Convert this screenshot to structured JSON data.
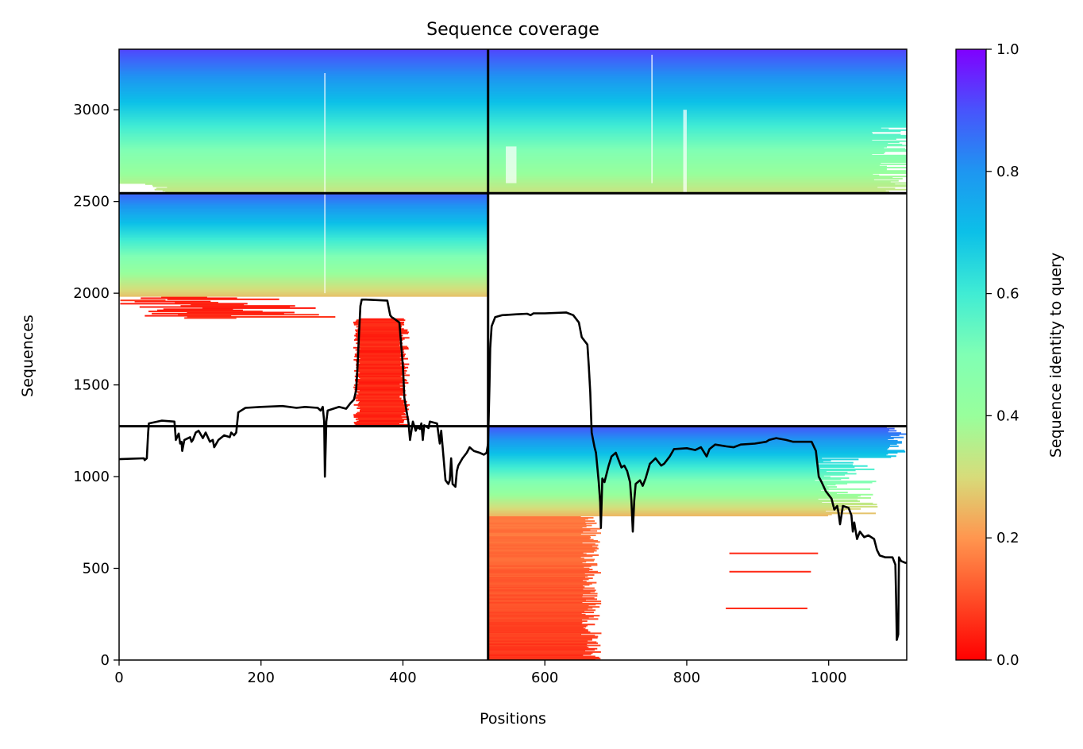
{
  "chart_data": {
    "type": "heatmap",
    "title": "Sequence coverage",
    "xlabel": "Positions",
    "ylabel": "Sequences",
    "xlim": [
      0,
      1110
    ],
    "ylim": [
      0,
      3330
    ],
    "x_ticks": [
      0,
      200,
      400,
      600,
      800,
      1000
    ],
    "y_ticks": [
      0,
      500,
      1000,
      1500,
      2000,
      2500,
      3000
    ],
    "colorbar": {
      "label": "Sequence identity to query",
      "colormap": "rainbow_r",
      "range": [
        0.0,
        1.0
      ],
      "ticks": [
        "0.0",
        "0.2",
        "0.4",
        "0.6",
        "0.8",
        "1.0"
      ]
    },
    "chain_boundaries": {
      "positions": [
        520
      ],
      "sequence_counts": [
        1275,
        2545
      ]
    },
    "coverage_line": {
      "color": "#000000",
      "points": [
        [
          0,
          1095
        ],
        [
          35,
          1100
        ],
        [
          36,
          1090
        ],
        [
          39,
          1100
        ],
        [
          41,
          1240
        ],
        [
          42,
          1290
        ],
        [
          60,
          1305
        ],
        [
          78,
          1300
        ],
        [
          80,
          1200
        ],
        [
          84,
          1235
        ],
        [
          86,
          1180
        ],
        [
          88,
          1190
        ],
        [
          89,
          1140
        ],
        [
          92,
          1200
        ],
        [
          100,
          1215
        ],
        [
          102,
          1190
        ],
        [
          104,
          1200
        ],
        [
          108,
          1240
        ],
        [
          112,
          1250
        ],
        [
          118,
          1210
        ],
        [
          122,
          1240
        ],
        [
          128,
          1190
        ],
        [
          132,
          1200
        ],
        [
          134,
          1160
        ],
        [
          140,
          1200
        ],
        [
          148,
          1225
        ],
        [
          156,
          1215
        ],
        [
          158,
          1240
        ],
        [
          162,
          1225
        ],
        [
          165,
          1240
        ],
        [
          168,
          1350
        ],
        [
          178,
          1375
        ],
        [
          200,
          1380
        ],
        [
          230,
          1385
        ],
        [
          240,
          1380
        ],
        [
          250,
          1375
        ],
        [
          262,
          1380
        ],
        [
          280,
          1375
        ],
        [
          284,
          1360
        ],
        [
          287,
          1380
        ],
        [
          289,
          1300
        ],
        [
          290,
          1000
        ],
        [
          292,
          1300
        ],
        [
          294,
          1360
        ],
        [
          310,
          1380
        ],
        [
          320,
          1370
        ],
        [
          326,
          1400
        ],
        [
          331,
          1420
        ],
        [
          334,
          1470
        ],
        [
          336,
          1600
        ],
        [
          338,
          1770
        ],
        [
          340,
          1930
        ],
        [
          342,
          1965
        ],
        [
          348,
          1965
        ],
        [
          378,
          1960
        ],
        [
          382,
          1880
        ],
        [
          384,
          1870
        ],
        [
          388,
          1860
        ],
        [
          395,
          1840
        ],
        [
          400,
          1600
        ],
        [
          402,
          1430
        ],
        [
          408,
          1290
        ],
        [
          410,
          1200
        ],
        [
          414,
          1300
        ],
        [
          418,
          1250
        ],
        [
          420,
          1270
        ],
        [
          424,
          1260
        ],
        [
          426,
          1290
        ],
        [
          428,
          1200
        ],
        [
          430,
          1280
        ],
        [
          436,
          1265
        ],
        [
          438,
          1300
        ],
        [
          448,
          1290
        ],
        [
          452,
          1180
        ],
        [
          454,
          1250
        ],
        [
          458,
          1070
        ],
        [
          460,
          980
        ],
        [
          464,
          960
        ],
        [
          466,
          980
        ],
        [
          468,
          1100
        ],
        [
          470,
          960
        ],
        [
          474,
          945
        ],
        [
          476,
          1030
        ],
        [
          478,
          1060
        ],
        [
          484,
          1100
        ],
        [
          490,
          1130
        ],
        [
          494,
          1160
        ],
        [
          500,
          1140
        ],
        [
          508,
          1130
        ],
        [
          514,
          1120
        ],
        [
          518,
          1130
        ],
        [
          520,
          1180
        ],
        [
          521,
          1340
        ],
        [
          522,
          1500
        ],
        [
          523,
          1700
        ],
        [
          525,
          1820
        ],
        [
          530,
          1870
        ],
        [
          540,
          1880
        ],
        [
          560,
          1885
        ],
        [
          575,
          1888
        ],
        [
          580,
          1880
        ],
        [
          584,
          1890
        ],
        [
          600,
          1890
        ],
        [
          630,
          1895
        ],
        [
          640,
          1880
        ],
        [
          648,
          1840
        ],
        [
          652,
          1760
        ],
        [
          660,
          1720
        ],
        [
          662,
          1600
        ],
        [
          664,
          1460
        ],
        [
          666,
          1240
        ],
        [
          668,
          1200
        ],
        [
          670,
          1160
        ],
        [
          672,
          1130
        ],
        [
          676,
          970
        ],
        [
          678,
          860
        ],
        [
          679,
          720
        ],
        [
          681,
          990
        ],
        [
          684,
          970
        ],
        [
          690,
          1060
        ],
        [
          694,
          1110
        ],
        [
          700,
          1130
        ],
        [
          708,
          1050
        ],
        [
          712,
          1060
        ],
        [
          716,
          1030
        ],
        [
          720,
          970
        ],
        [
          722,
          870
        ],
        [
          724,
          700
        ],
        [
          726,
          870
        ],
        [
          728,
          960
        ],
        [
          734,
          980
        ],
        [
          738,
          950
        ],
        [
          742,
          990
        ],
        [
          748,
          1070
        ],
        [
          756,
          1100
        ],
        [
          764,
          1060
        ],
        [
          768,
          1070
        ],
        [
          776,
          1110
        ],
        [
          782,
          1150
        ],
        [
          800,
          1155
        ],
        [
          812,
          1145
        ],
        [
          820,
          1160
        ],
        [
          828,
          1110
        ],
        [
          832,
          1150
        ],
        [
          840,
          1175
        ],
        [
          856,
          1165
        ],
        [
          866,
          1160
        ],
        [
          876,
          1175
        ],
        [
          896,
          1180
        ],
        [
          912,
          1190
        ],
        [
          916,
          1200
        ],
        [
          926,
          1210
        ],
        [
          940,
          1200
        ],
        [
          950,
          1190
        ],
        [
          976,
          1190
        ],
        [
          982,
          1140
        ],
        [
          986,
          1000
        ],
        [
          990,
          970
        ],
        [
          996,
          920
        ],
        [
          1004,
          880
        ],
        [
          1008,
          820
        ],
        [
          1012,
          840
        ],
        [
          1014,
          800
        ],
        [
          1016,
          740
        ],
        [
          1018,
          790
        ],
        [
          1020,
          840
        ],
        [
          1028,
          830
        ],
        [
          1032,
          790
        ],
        [
          1034,
          700
        ],
        [
          1036,
          750
        ],
        [
          1040,
          660
        ],
        [
          1044,
          700
        ],
        [
          1050,
          670
        ],
        [
          1056,
          680
        ],
        [
          1064,
          660
        ],
        [
          1068,
          600
        ],
        [
          1072,
          570
        ],
        [
          1080,
          560
        ],
        [
          1090,
          560
        ],
        [
          1094,
          520
        ],
        [
          1095,
          340
        ],
        [
          1096,
          110
        ],
        [
          1098,
          140
        ],
        [
          1099,
          560
        ],
        [
          1102,
          540
        ],
        [
          1108,
          530
        ],
        [
          1110,
          530
        ]
      ]
    }
  }
}
